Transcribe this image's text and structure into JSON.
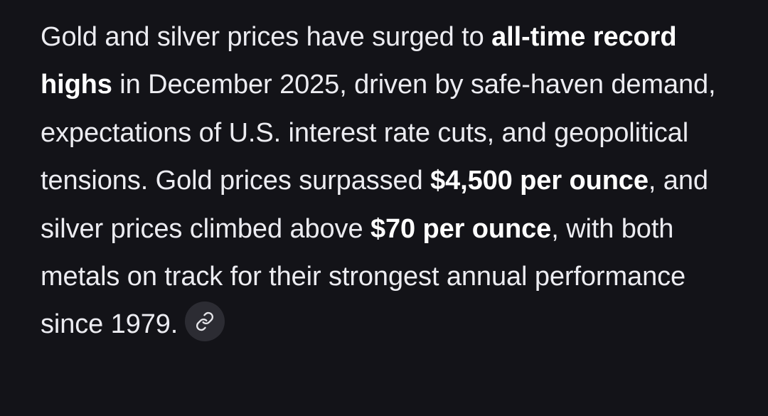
{
  "response": {
    "segments": [
      {
        "text": "Gold and silver prices have surged to ",
        "bold": false
      },
      {
        "text": "all-time record highs",
        "bold": true
      },
      {
        "text": " in December 2025, driven by safe-haven demand, expectations of U.S. interest rate cuts, and geopolitical tensions. Gold prices surpassed ",
        "bold": false
      },
      {
        "text": "$4,500 per ounce",
        "bold": true
      },
      {
        "text": ", and silver prices climbed above ",
        "bold": false
      },
      {
        "text": "$70 per ounce",
        "bold": true
      },
      {
        "text": ", with both metals on track for their strongest annual performance since 1979.",
        "bold": false
      }
    ],
    "citation_icon": "link-icon"
  },
  "colors": {
    "background": "#131318",
    "text": "#ececf1",
    "chip_background": "#2c2c33"
  }
}
